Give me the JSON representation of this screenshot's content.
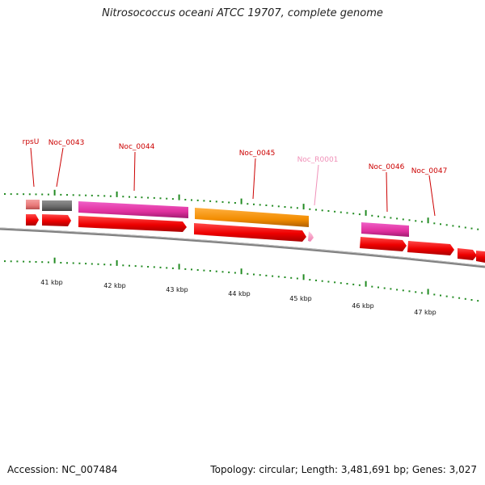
{
  "title": "Nitrosococcus oceani ATCC 19707, complete genome",
  "accession": "Accession: NC_007484",
  "topology": "Topology: circular; Length: 3,481,691 bp; Genes: 3,027",
  "colors": {
    "gene_label": "#cc0000",
    "rna_label": "#f090b8",
    "cds_arrow": "#ee0000",
    "backbone": "#808080",
    "tick": "#228b22"
  },
  "gene_labels": [
    {
      "id": "rpsU",
      "text": "rpsU",
      "color": "#cc0000"
    },
    {
      "id": "Noc_0043",
      "text": "Noc_0043",
      "color": "#cc0000"
    },
    {
      "id": "Noc_0044",
      "text": "Noc_0044",
      "color": "#cc0000"
    },
    {
      "id": "Noc_0045",
      "text": "Noc_0045",
      "color": "#cc0000"
    },
    {
      "id": "Noc_R0001",
      "text": "Noc_R0001",
      "color": "#f090b8"
    },
    {
      "id": "Noc_0046",
      "text": "Noc_0046",
      "color": "#cc0000"
    },
    {
      "id": "Noc_0047",
      "text": "Noc_0047",
      "color": "#cc0000"
    }
  ],
  "kbp_labels": [
    "41 kbp",
    "42 kbp",
    "43 kbp",
    "44 kbp",
    "45 kbp",
    "46 kbp",
    "47 kbp"
  ]
}
